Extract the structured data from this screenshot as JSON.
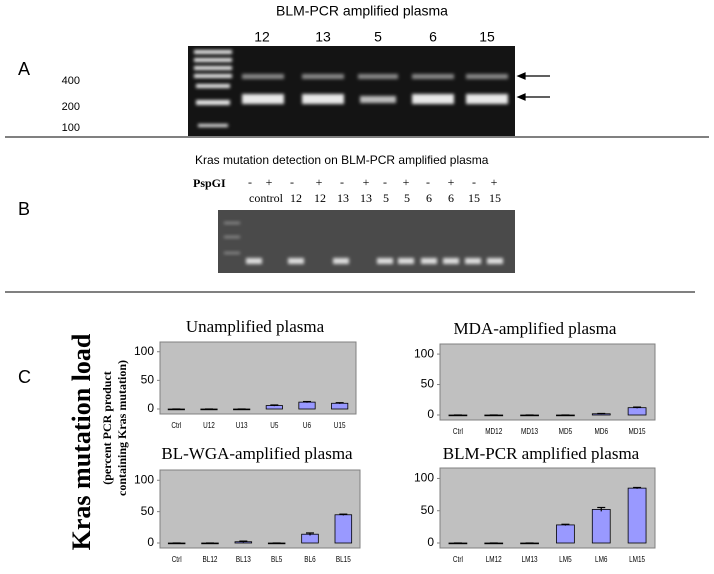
{
  "panel_labels": [
    "A",
    "B",
    "C"
  ],
  "panel_a": {
    "title": "BLM-PCR amplified plasma",
    "lanes": [
      "12",
      "13",
      "5",
      "6",
      "15"
    ],
    "markers": [
      "400",
      "200",
      "100"
    ]
  },
  "panel_b": {
    "title": "Kras mutation detection on BLM-PCR amplified plasma",
    "enzyme": "PspGI",
    "signs": [
      "-",
      "+",
      "-",
      "+",
      "-",
      "+",
      "-",
      "+",
      "-",
      "+",
      "-",
      "+"
    ],
    "lanes": [
      "control",
      "12",
      "12",
      "13",
      "13",
      "5",
      "5",
      "6",
      "6",
      "15",
      "15"
    ]
  },
  "panel_c": {
    "y_label": "Kras mutation load",
    "y_sublabel": [
      "(percent PCR product",
      "containing Kras mutation)"
    ]
  },
  "chart_data": [
    {
      "type": "bar",
      "title": "Unamplified plasma",
      "categories": [
        "Ctrl",
        "U12",
        "U13",
        "U5",
        "U6",
        "U15"
      ],
      "values": [
        0,
        0,
        0,
        6,
        12,
        10
      ],
      "errors": [
        0,
        0,
        0,
        1,
        1,
        1
      ],
      "color": "#9999ff",
      "ylim": [
        0,
        110
      ],
      "yticks": [
        0,
        50,
        100
      ]
    },
    {
      "type": "bar",
      "title": "MDA-amplified plasma",
      "categories": [
        "Ctrl",
        "MD12",
        "MD13",
        "MD5",
        "MD6",
        "MD15"
      ],
      "values": [
        0,
        0,
        0,
        0,
        2,
        12
      ],
      "errors": [
        0,
        0,
        0,
        0,
        0.5,
        1
      ],
      "color": "#9999ff",
      "ylim": [
        0,
        110
      ],
      "yticks": [
        0,
        50,
        100
      ]
    },
    {
      "type": "bar",
      "title": "BL-WGA-amplified plasma",
      "categories": [
        "Ctrl",
        "BL12",
        "BL13",
        "BL5",
        "BL6",
        "BL15"
      ],
      "values": [
        0,
        0,
        2,
        0,
        14,
        45
      ],
      "errors": [
        0,
        0,
        1,
        0,
        2,
        1
      ],
      "color": "#9999ff",
      "ylim": [
        0,
        110
      ],
      "yticks": [
        0,
        50,
        100
      ]
    },
    {
      "type": "bar",
      "title": "BLM-PCR amplified plasma",
      "categories": [
        "Ctrl",
        "LM12",
        "LM13",
        "LM5",
        "LM6",
        "LM15"
      ],
      "values": [
        0,
        0,
        0,
        28,
        52,
        85
      ],
      "errors": [
        0,
        0,
        0,
        1,
        3,
        1
      ],
      "color": "#9999ff",
      "ylim": [
        0,
        110
      ],
      "yticks": [
        0,
        50,
        100
      ]
    }
  ]
}
